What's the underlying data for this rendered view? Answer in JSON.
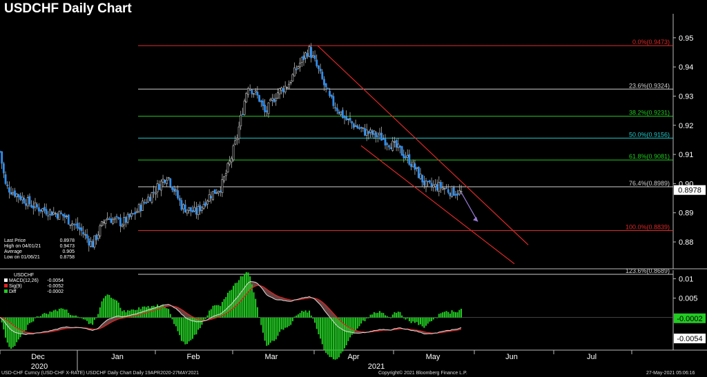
{
  "title": "USDCHF Daily Chart",
  "legend_price": {
    "rows": [
      {
        "label": "Last Price",
        "value": "0.8978",
        "color": "#ffffff"
      },
      {
        "label": "High on 04/01/21",
        "value": "0.9473",
        "color": "#ffffff"
      },
      {
        "label": "Average",
        "value": "0.905",
        "color": "#ffffff"
      },
      {
        "label": "Low on 01/06/21",
        "value": "0.8758",
        "color": "#ffffff"
      }
    ]
  },
  "legend_macd": {
    "title": "USDCHF",
    "rows": [
      {
        "label": "MACD(12,26)",
        "value": "-0.0054",
        "color": "#ffffff"
      },
      {
        "label": "Sig(9)",
        "value": "-0.0052",
        "color": "#e02020"
      },
      {
        "label": "Diff",
        "value": "-0.0002",
        "color": "#22cc22"
      }
    ]
  },
  "footer": {
    "left": "USD-CHF Curncy (USD-CHF X-RATE) USDCHF Daily Chart  Daily 19APR2020-27MAY2021",
    "center": "Copyright© 2021 Bloomberg Finance L.P.",
    "right": "27-May-2021 05:06:16"
  },
  "chart_data": [
    {
      "type": "candlestick",
      "title": "USDCHF Daily Chart",
      "ylim": [
        0.8715,
        0.9535
      ],
      "y_ticks": [
        {
          "value": 0.95,
          "label": "0.95"
        },
        {
          "value": 0.94,
          "label": "0.94"
        },
        {
          "value": 0.93,
          "label": "0.93"
        },
        {
          "value": 0.92,
          "label": "0.92"
        },
        {
          "value": 0.91,
          "label": "0.91"
        },
        {
          "value": 0.9,
          "label": "0.90"
        },
        {
          "value": 0.89,
          "label": "0.89"
        },
        {
          "value": 0.88,
          "label": "0.88"
        }
      ],
      "last_price_tag": {
        "value": 0.8978,
        "label": "0.8978"
      },
      "fibonacci_levels": [
        {
          "value": 0.9473,
          "label": "0.0%(0.9473)",
          "color": "#e02828"
        },
        {
          "value": 0.9324,
          "label": "23.6%(0.9324)",
          "color": "#cfcfcf"
        },
        {
          "value": 0.9231,
          "label": "38.2%(0.9231)",
          "color": "#22cc22"
        },
        {
          "value": 0.9156,
          "label": "50.0%(0.9156)",
          "color": "#22cccc"
        },
        {
          "value": 0.9081,
          "label": "61.8%(0.9081)",
          "color": "#22cc22"
        },
        {
          "value": 0.8989,
          "label": "76.4%(0.8989)",
          "color": "#cfcfcf"
        },
        {
          "value": 0.8839,
          "label": "100.0%(0.8839)",
          "color": "#e02828"
        },
        {
          "value": 0.8689,
          "label": "123.6%(0.8689)",
          "color": "#cfcfcf"
        }
      ],
      "x_month_labels": [
        "Dec",
        "Jan",
        "Feb",
        "Mar",
        "Apr",
        "May",
        "Jun",
        "Jul"
      ],
      "x_year_labels": [
        "2020",
        "2021"
      ],
      "channel": {
        "color": "#e02828",
        "upper": [
          0.9473,
          0.879
        ],
        "lower": [
          0.913,
          0.8725
        ]
      },
      "forecast_arrow": {
        "from": 0.897,
        "to": 0.887,
        "color": "#9a7ad8"
      },
      "candles": []
    },
    {
      "type": "line",
      "title": "USDCHF",
      "ylim": [
        -0.0077,
        0.0122
      ],
      "y_ticks": [
        {
          "value": 0.01,
          "label": "0.01"
        },
        {
          "value": 0.005,
          "label": "0.005"
        }
      ],
      "value_tags": [
        {
          "value": -0.0002,
          "label": "-0.0002",
          "color": "#22cc22"
        },
        {
          "value": -0.0054,
          "label": "-0.0054",
          "color": "#ffffff"
        }
      ],
      "series": [
        {
          "name": "MACD(12,26)",
          "color": "#ffffff",
          "values": []
        },
        {
          "name": "Sig(9)",
          "color": "#e02020",
          "values": []
        },
        {
          "name": "Diff",
          "color": "#22cc22",
          "values": []
        }
      ]
    }
  ]
}
